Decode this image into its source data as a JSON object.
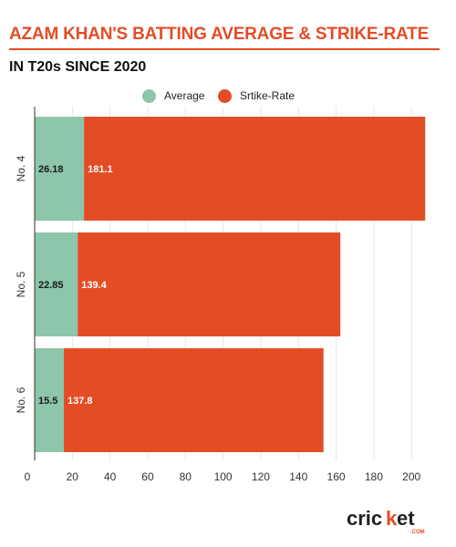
{
  "title": "AZAM KHAN'S BATTING AVERAGE & STRIKE-RATE",
  "subtitle": "IN T20s SINCE 2020",
  "logo_text": "cricket.com",
  "colors": {
    "accent": "#e34d26",
    "average": "#8dc6aa",
    "strike_rate": "#e34d26"
  },
  "chart_data": {
    "type": "bar",
    "orientation": "horizontal",
    "stacked": true,
    "categories": [
      "No. 4",
      "No. 5",
      "No. 6"
    ],
    "series": [
      {
        "name": "Average",
        "values": [
          26.18,
          22.85,
          15.5
        ],
        "labels": [
          "26.18",
          "22.85",
          "15.5"
        ],
        "color": "#8dc6aa"
      },
      {
        "name": "Srtike-Rate",
        "values": [
          181.1,
          139.4,
          137.8
        ],
        "labels": [
          "181.1",
          "139.4",
          "137.8"
        ],
        "color": "#e34d26"
      }
    ],
    "xticks": [
      0,
      20,
      40,
      60,
      80,
      100,
      120,
      140,
      160,
      180,
      200
    ],
    "xtick_labels": [
      "0",
      "20",
      "40",
      "60",
      "80",
      "100",
      "120",
      "140",
      "160",
      "180",
      "200"
    ],
    "xlim": [
      0,
      210
    ],
    "legend_position": "top-center",
    "grid": true,
    "xlabel": "",
    "ylabel": ""
  }
}
